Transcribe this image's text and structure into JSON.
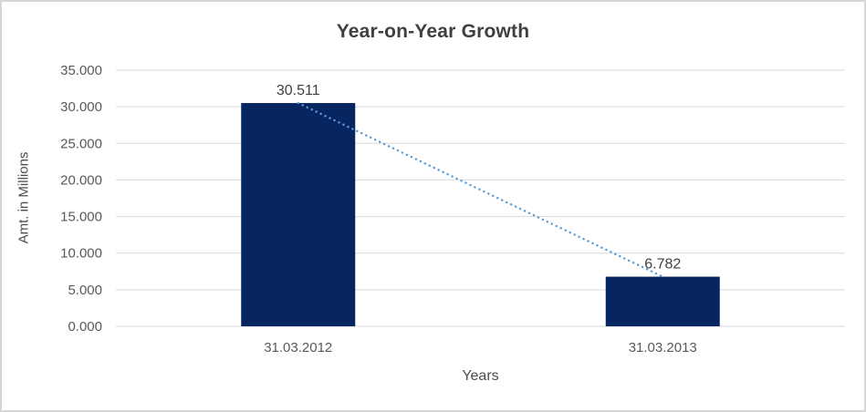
{
  "window": {
    "background": "#ffffff",
    "border_color": "#d6d6d6"
  },
  "chart_data": {
    "type": "bar",
    "title": "Year-on-Year Growth",
    "xlabel": "Years",
    "ylabel": "Amt. in Millions",
    "categories": [
      "31.03.2012",
      "31.03.2013"
    ],
    "values": [
      30.511,
      6.782
    ],
    "data_labels": [
      "30.511",
      "6.782"
    ],
    "ylim": [
      0,
      35
    ],
    "ytick_step": 5,
    "ytick_labels": [
      "0.000",
      "5.000",
      "10.000",
      "15.000",
      "20.000",
      "25.000",
      "30.000",
      "35.000"
    ],
    "grid": true,
    "legend": "none",
    "trendline": {
      "style": "dotted",
      "color": "#5b9bd5",
      "connects": [
        "31.03.2012",
        "31.03.2013"
      ]
    },
    "colors": {
      "bar": "#062561",
      "gridline": "#d9d9d9",
      "title": "#3f3f3f",
      "axis_title": "#4d4d4d",
      "tick_label": "#595959",
      "data_label": "#404040"
    }
  }
}
